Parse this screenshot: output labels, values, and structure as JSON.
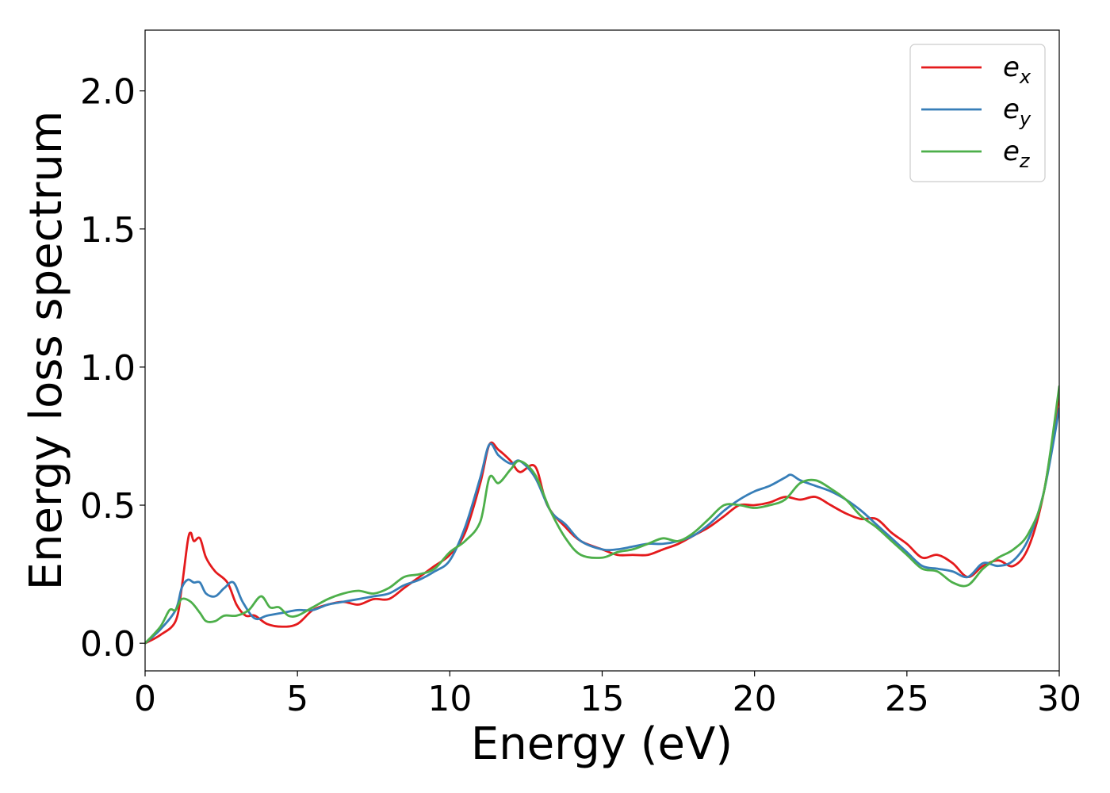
{
  "chart_data": {
    "type": "line",
    "xlabel": "Energy (eV)",
    "ylabel": "Energy loss spectrum",
    "xlim": [
      0,
      30
    ],
    "ylim": [
      -0.1,
      2.22
    ],
    "xticks": [
      0,
      5,
      10,
      15,
      20,
      25,
      30
    ],
    "xtick_labels": [
      "0",
      "5",
      "10",
      "15",
      "20",
      "25",
      "30"
    ],
    "yticks": [
      0.0,
      0.5,
      1.0,
      1.5,
      2.0
    ],
    "ytick_labels": [
      "0.0",
      "0.5",
      "1.0",
      "1.5",
      "2.0"
    ],
    "grid": false,
    "legend_position": "top-right",
    "series": [
      {
        "name": "e_x",
        "legend_main": "e",
        "legend_sub": "x",
        "color": "#e41a1c",
        "x": [
          0,
          0.5,
          1.0,
          1.2,
          1.4,
          1.5,
          1.6,
          1.8,
          2.0,
          2.3,
          2.7,
          3.0,
          3.3,
          3.6,
          4.0,
          4.5,
          5.0,
          5.5,
          6.0,
          6.5,
          7.0,
          7.5,
          8.0,
          8.5,
          9.0,
          9.5,
          10.0,
          10.5,
          11.0,
          11.3,
          11.6,
          12.0,
          12.3,
          12.8,
          13.2,
          13.8,
          14.3,
          15.0,
          15.5,
          16.0,
          16.5,
          17.0,
          17.5,
          18.0,
          18.5,
          19.0,
          19.5,
          20.0,
          20.5,
          21.0,
          21.5,
          22.0,
          22.5,
          23.0,
          23.5,
          24.0,
          24.5,
          25.0,
          25.5,
          26.0,
          26.5,
          27.0,
          27.5,
          28.0,
          28.5,
          29.0,
          29.5,
          30.0
        ],
        "y": [
          0.0,
          0.03,
          0.08,
          0.2,
          0.37,
          0.4,
          0.37,
          0.38,
          0.31,
          0.26,
          0.22,
          0.14,
          0.1,
          0.1,
          0.07,
          0.06,
          0.07,
          0.12,
          0.14,
          0.15,
          0.14,
          0.16,
          0.16,
          0.2,
          0.24,
          0.28,
          0.32,
          0.4,
          0.58,
          0.72,
          0.7,
          0.66,
          0.62,
          0.64,
          0.5,
          0.42,
          0.37,
          0.34,
          0.32,
          0.32,
          0.32,
          0.34,
          0.36,
          0.39,
          0.42,
          0.46,
          0.5,
          0.5,
          0.51,
          0.53,
          0.52,
          0.53,
          0.5,
          0.47,
          0.45,
          0.45,
          0.4,
          0.36,
          0.31,
          0.32,
          0.29,
          0.24,
          0.28,
          0.3,
          0.28,
          0.35,
          0.55,
          0.9
        ]
      },
      {
        "name": "e_y",
        "legend_main": "e",
        "legend_sub": "y",
        "color": "#377eb8",
        "x": [
          0,
          0.5,
          1.0,
          1.2,
          1.4,
          1.6,
          1.8,
          2.0,
          2.3,
          2.6,
          2.9,
          3.2,
          3.6,
          4.0,
          4.5,
          5.0,
          5.5,
          6.0,
          6.5,
          7.0,
          7.5,
          8.0,
          8.5,
          9.0,
          9.5,
          10.0,
          10.5,
          11.0,
          11.3,
          11.6,
          12.0,
          12.3,
          12.8,
          13.3,
          13.8,
          14.3,
          15.0,
          15.5,
          16.0,
          16.5,
          17.0,
          17.5,
          18.0,
          18.5,
          19.0,
          19.5,
          20.0,
          20.5,
          21.0,
          21.2,
          21.5,
          22.0,
          22.5,
          23.0,
          23.5,
          24.0,
          24.5,
          25.0,
          25.5,
          26.0,
          26.5,
          27.0,
          27.5,
          28.0,
          28.5,
          29.0,
          29.5,
          30.0
        ],
        "y": [
          0.0,
          0.05,
          0.12,
          0.2,
          0.23,
          0.22,
          0.22,
          0.18,
          0.17,
          0.2,
          0.22,
          0.15,
          0.09,
          0.1,
          0.11,
          0.12,
          0.12,
          0.14,
          0.15,
          0.16,
          0.17,
          0.18,
          0.21,
          0.23,
          0.26,
          0.3,
          0.42,
          0.6,
          0.72,
          0.68,
          0.65,
          0.66,
          0.6,
          0.48,
          0.43,
          0.37,
          0.34,
          0.34,
          0.35,
          0.36,
          0.36,
          0.37,
          0.39,
          0.43,
          0.48,
          0.52,
          0.55,
          0.57,
          0.6,
          0.61,
          0.59,
          0.57,
          0.55,
          0.52,
          0.48,
          0.43,
          0.38,
          0.33,
          0.28,
          0.27,
          0.26,
          0.24,
          0.29,
          0.28,
          0.3,
          0.38,
          0.55,
          0.85
        ]
      },
      {
        "name": "e_z",
        "legend_main": "e",
        "legend_sub": "z",
        "color": "#4daf4a",
        "x": [
          0,
          0.5,
          0.8,
          1.0,
          1.2,
          1.5,
          1.8,
          2.0,
          2.3,
          2.6,
          3.0,
          3.4,
          3.8,
          4.1,
          4.4,
          4.7,
          5.0,
          5.5,
          6.0,
          6.5,
          7.0,
          7.5,
          8.0,
          8.5,
          9.0,
          9.5,
          10.0,
          10.5,
          11.0,
          11.3,
          11.6,
          12.0,
          12.3,
          12.8,
          13.3,
          13.8,
          14.3,
          15.0,
          15.5,
          16.0,
          16.5,
          17.0,
          17.5,
          18.0,
          18.5,
          19.0,
          19.5,
          20.0,
          20.5,
          21.0,
          21.5,
          22.0,
          22.5,
          23.0,
          23.5,
          24.0,
          24.5,
          25.0,
          25.5,
          26.0,
          26.5,
          27.0,
          27.5,
          28.0,
          28.5,
          29.0,
          29.5,
          30.0
        ],
        "y": [
          0.0,
          0.06,
          0.12,
          0.12,
          0.16,
          0.15,
          0.11,
          0.08,
          0.08,
          0.1,
          0.1,
          0.12,
          0.17,
          0.13,
          0.13,
          0.1,
          0.1,
          0.13,
          0.16,
          0.18,
          0.19,
          0.18,
          0.2,
          0.24,
          0.25,
          0.27,
          0.33,
          0.37,
          0.44,
          0.6,
          0.58,
          0.63,
          0.66,
          0.61,
          0.48,
          0.38,
          0.32,
          0.31,
          0.33,
          0.34,
          0.36,
          0.38,
          0.37,
          0.4,
          0.45,
          0.5,
          0.5,
          0.49,
          0.5,
          0.52,
          0.58,
          0.59,
          0.56,
          0.52,
          0.46,
          0.42,
          0.37,
          0.32,
          0.27,
          0.26,
          0.22,
          0.21,
          0.27,
          0.31,
          0.34,
          0.4,
          0.55,
          0.93
        ]
      }
    ]
  }
}
